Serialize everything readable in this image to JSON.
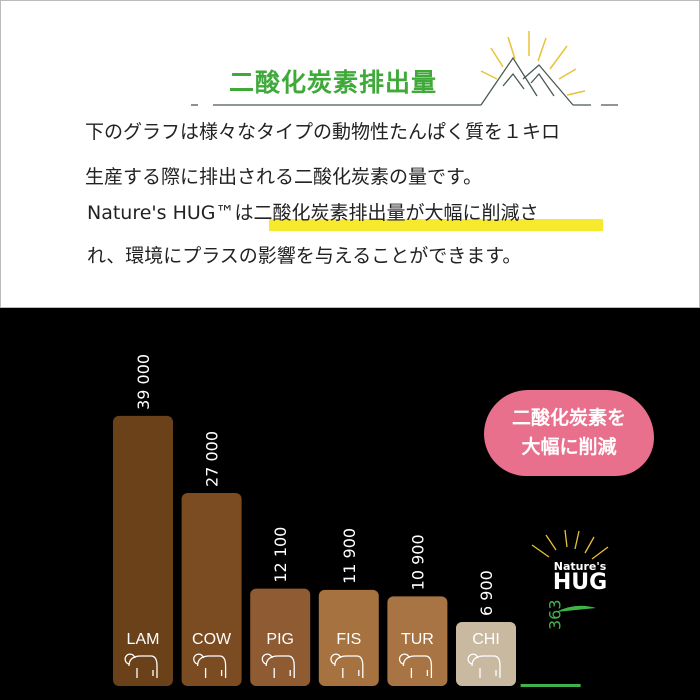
{
  "header": {
    "title": "二酸化炭素排出量",
    "line1": "下のグラフは様々なタイプの動物性たんぱく質を１キロ",
    "line2": "生産する際に排出される二酸化炭素の量です。",
    "line3_pre": "Nature's HUG™は",
    "line3_highlight": "二酸化炭素排出量が大幅に削減",
    "line3_post": "さ",
    "line4": "れ、環境にプラスの影響を与えることができます。",
    "colors": {
      "title": "#3fa93a",
      "highlight": "#f7ea2e",
      "sun": "#e8c23a"
    }
  },
  "callout": {
    "line1": "二酸化炭素を",
    "line2": "大幅に削減",
    "color": "#e8708c"
  },
  "logo": {
    "line1": "Nature's",
    "line2": "HUG"
  },
  "chart_data": {
    "type": "bar",
    "categories": [
      "LAM",
      "COW",
      "PIG",
      "FIS",
      "TUR",
      "CHI",
      "Nature's HUG"
    ],
    "values": [
      39000,
      27000,
      12100,
      11900,
      10900,
      6900,
      363
    ],
    "value_labels": [
      "39 000",
      "27 000",
      "12 100",
      "11 900",
      "10 900",
      "6 900",
      "363"
    ],
    "icons": [
      "sheep-icon",
      "cow-icon",
      "pig-icon",
      "fish-icon",
      "turkey-icon",
      "chicken-icon",
      ""
    ],
    "colors": [
      "#6b4119",
      "#7b4b22",
      "#8f5b33",
      "#a6723f",
      "#a87443",
      "#c9b9a1",
      "#3fb34a"
    ],
    "grid": false
  }
}
